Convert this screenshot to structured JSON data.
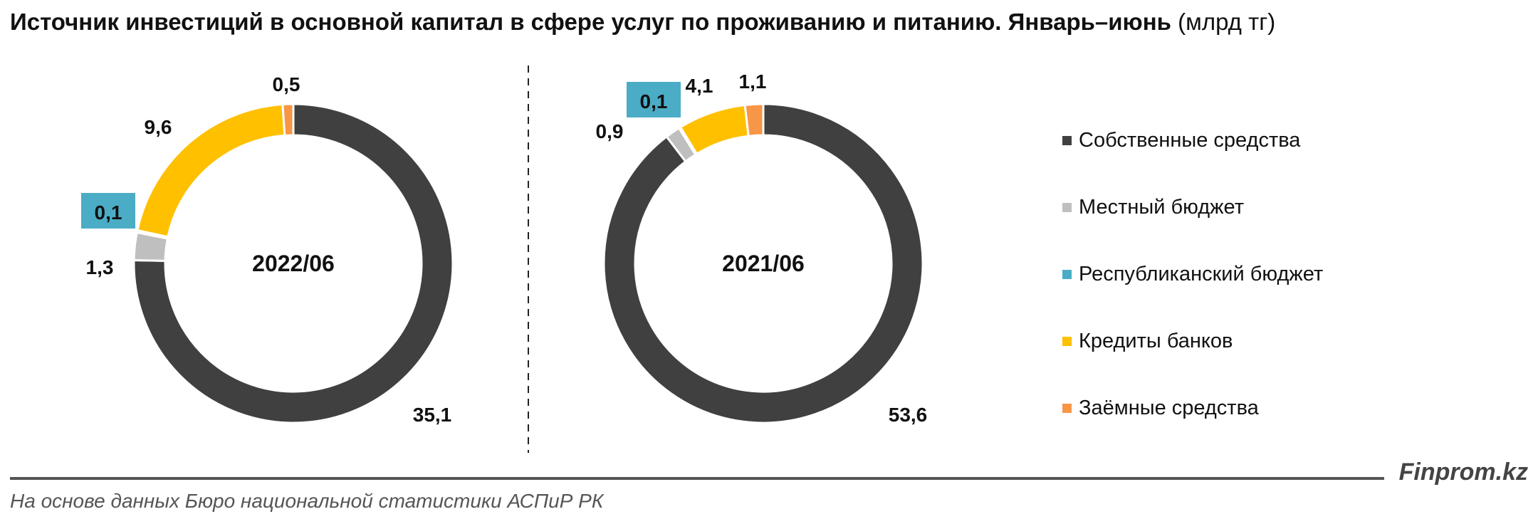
{
  "title": {
    "main": "Источник инвестиций в основной капитал в сфере услуг по проживанию и питанию. Январь–июнь",
    "unit": "(млрд тг)"
  },
  "legend": [
    {
      "label": "Собственные средства",
      "color": "#404040"
    },
    {
      "label": "Местный бюджет",
      "color": "#bfbfbf"
    },
    {
      "label": "Республиканский бюджет",
      "color": "#4bacc6"
    },
    {
      "label": "Кредиты банков",
      "color": "#ffc000"
    },
    {
      "label": "Заёмные средства",
      "color": "#f79646"
    }
  ],
  "chart_data": [
    {
      "type": "pie",
      "center_label": "2022/06",
      "categories": [
        "Собственные средства",
        "Местный бюджет",
        "Республиканский бюджет",
        "Кредиты банков",
        "Заёмные средства"
      ],
      "values": [
        35.1,
        1.3,
        0.1,
        9.6,
        0.5
      ],
      "labels": [
        "35,1",
        "1,3",
        "0,1",
        "9,6",
        "0,5"
      ]
    },
    {
      "type": "pie",
      "center_label": "2021/06",
      "categories": [
        "Собственные средства",
        "Местный бюджет",
        "Республиканский бюджет",
        "Кредиты банков",
        "Заёмные средства"
      ],
      "values": [
        53.6,
        0.9,
        0.1,
        4.1,
        1.1
      ],
      "labels": [
        "53,6",
        "0,9",
        "0,1",
        "4,1",
        "1,1"
      ]
    }
  ],
  "footer": {
    "brand": "Finprom.kz",
    "source": "На основе данных Бюро национальной статистики АСПиР РК"
  }
}
